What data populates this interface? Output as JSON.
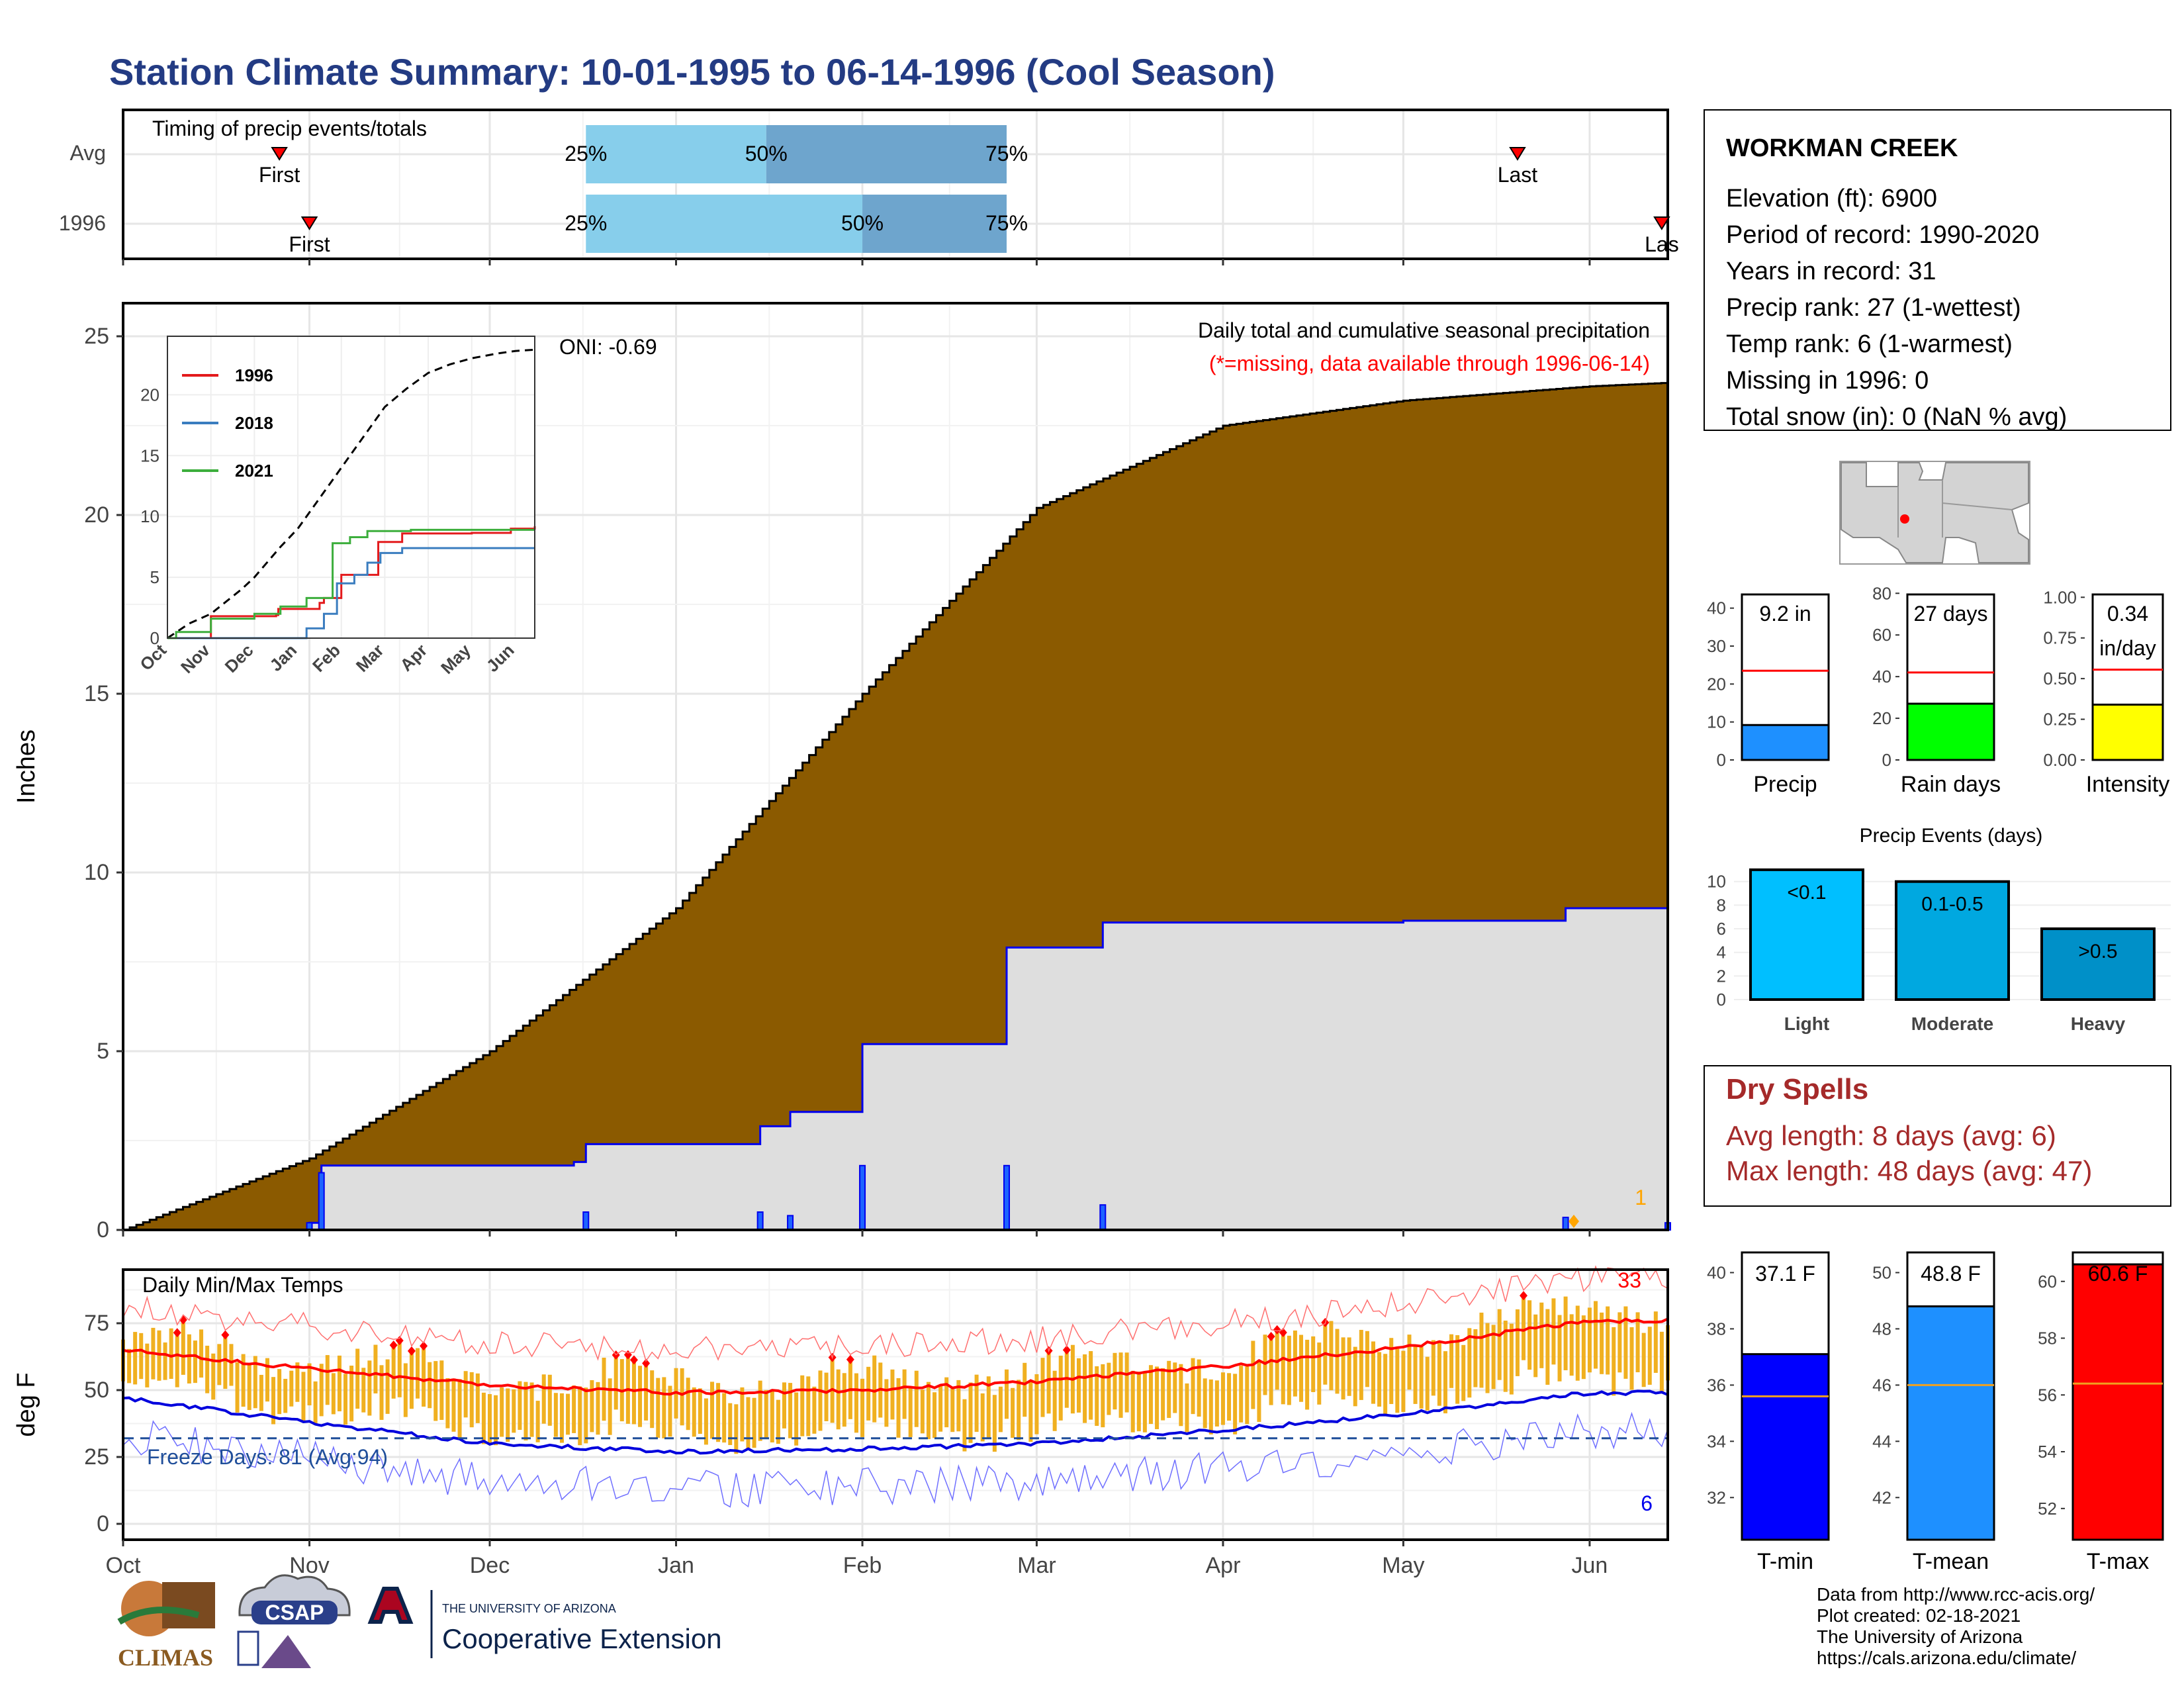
{
  "title": "Station Climate Summary: 10-01-1995 to 06-14-1996 (Cool Season)",
  "colors": {
    "title": "#233b83",
    "brown": "#8b5a00",
    "light_gray": "#dedede",
    "blue": "#0000ee",
    "tmax_line": "#ff0000",
    "tmin_line": "#0000dd",
    "bar_gold": "#f0b020",
    "freeze_line": "#1f4e9a",
    "dry_text": "#a52a2a",
    "q_light": "#87ceeb",
    "q_dark": "#6ea5cd"
  },
  "timing": {
    "label": "Timing of precip events/totals",
    "rows": [
      {
        "name": "Avg",
        "first": "First",
        "last": "Last",
        "q25": "25%",
        "q50": "50%",
        "q75": "75%",
        "first_date": "1995-10-27",
        "last_date": "1996-05-20",
        "q25_date": "1995-12-17",
        "q50_date": "1996-01-16",
        "q75_date": "1996-02-25"
      },
      {
        "name": "1996",
        "first": "First",
        "last": "Las",
        "q25": "25%",
        "q50": "50%",
        "q75": "75%",
        "first_date": "1995-11-01",
        "last_date": "1996-06-13",
        "q25_date": "1995-12-17",
        "q50_date": "1996-02-01",
        "q75_date": "1996-02-25"
      }
    ]
  },
  "months": [
    "Oct",
    "Nov",
    "Dec",
    "Jan",
    "Feb",
    "Mar",
    "Apr",
    "May",
    "Jun"
  ],
  "precip_panel": {
    "ylabel": "Inches",
    "yticks": [
      "0",
      "5",
      "10",
      "15",
      "20",
      "25"
    ],
    "note1": "Daily total and cumulative seasonal precipitation",
    "note2": "(*=missing, data available through 1996-06-14)",
    "oni": "ONI: -0.69",
    "count_label": "1"
  },
  "inset": {
    "yticks": [
      "0",
      "5",
      "10",
      "15",
      "20"
    ],
    "months": [
      "Oct",
      "Nov",
      "Dec",
      "Jan",
      "Feb",
      "Mar",
      "Apr",
      "May",
      "Jun"
    ],
    "legend": [
      {
        "label": "1996",
        "color": "#e31a1c"
      },
      {
        "label": "2018",
        "color": "#3a7dbf"
      },
      {
        "label": "2021",
        "color": "#3cae3c"
      }
    ]
  },
  "temp_panel": {
    "ylabel": "deg F",
    "label": "Daily Min/Max Temps",
    "yticks": [
      "0",
      "25",
      "50",
      "75"
    ],
    "freeze_label": "Freeze Days: 81 (Avg:94)",
    "count_low": "6",
    "count_high": "33"
  },
  "station": {
    "name": "WORKMAN CREEK",
    "lines": [
      "Elevation (ft): 6900",
      "Period of record: 1990-2020",
      "Years in record: 31",
      "Precip rank: 27 (1-wettest)",
      "Temp rank: 6 (1-warmest)",
      "Missing in 1996: 0",
      "Total snow (in): 0 (NaN % avg)"
    ]
  },
  "small_bars": [
    {
      "name": "Precip",
      "value_label": "9.2 in",
      "value": 9.2,
      "avg": 23.5,
      "ymax": 45,
      "ticks": [
        "0",
        "10",
        "20",
        "30",
        "40"
      ],
      "tickvals": [
        0,
        10,
        20,
        30,
        40
      ],
      "color": "#1e90ff"
    },
    {
      "name": "Rain days",
      "value_label": "27 days",
      "value": 27,
      "avg": 42,
      "ymax": 82,
      "ticks": [
        "0",
        "20",
        "40",
        "60",
        "80"
      ],
      "tickvals": [
        0,
        20,
        40,
        60,
        80
      ],
      "color": "#00ff00"
    },
    {
      "name": "Intensity",
      "value_label": "0.34",
      "value_label2": "in/day",
      "value": 0.34,
      "avg": 0.555,
      "ymax": 1.05,
      "ticks": [
        "0.00",
        "0.25",
        "0.50",
        "0.75",
        "1.00"
      ],
      "tickvals": [
        0,
        0.25,
        0.5,
        0.75,
        1.0
      ],
      "color": "#ffff00"
    }
  ],
  "precip_events": {
    "title": "Precip Events (days)",
    "ticks": [
      "0",
      "2",
      "4",
      "6",
      "8",
      "10"
    ],
    "bars": [
      {
        "name": "Light",
        "label": "<0.1",
        "value": 11,
        "color": "#00bfff"
      },
      {
        "name": "Moderate",
        "label": "0.1-0.5",
        "value": 10,
        "color": "#00a8e0"
      },
      {
        "name": "Heavy",
        "label": ">0.5",
        "value": 6,
        "color": "#0090c8"
      }
    ]
  },
  "dry_spells": {
    "title": "Dry Spells",
    "avg": "Avg length: 8 days (avg: 6)",
    "max": "Max length: 48 days (avg: 47)"
  },
  "temp_bars": [
    {
      "name": "T-min",
      "value_label": "37.1 F",
      "value": 37.1,
      "avg": 35.6,
      "ymin": 30.5,
      "ymax": 41,
      "ticks": [
        "32",
        "34",
        "36",
        "38",
        "40"
      ],
      "tickvals": [
        32,
        34,
        36,
        38,
        40
      ],
      "color": "#0000ff"
    },
    {
      "name": "T-mean",
      "value_label": "48.8 F",
      "value": 48.8,
      "avg": 46.0,
      "ymin": 40.5,
      "ymax": 51,
      "ticks": [
        "42",
        "44",
        "46",
        "48",
        "50"
      ],
      "tickvals": [
        42,
        44,
        46,
        48,
        50
      ],
      "color": "#1e90ff"
    },
    {
      "name": "T-max",
      "value_label": "60.6 F",
      "value": 60.6,
      "avg": 56.4,
      "ymin": 50.9,
      "ymax": 61.3,
      "ticks": [
        "52",
        "54",
        "56",
        "58",
        "60"
      ],
      "tickvals": [
        52,
        54,
        56,
        58,
        60
      ],
      "color": "#ff0000"
    }
  ],
  "credits": [
    "Data from http://www.rcc-acis.org/",
    "Plot created: 02-18-2021",
    "The University of Arizona",
    "https://cals.arizona.edu/climate/"
  ],
  "logos": {
    "climas": "CLIMAS",
    "csap": "CSAP",
    "ua_small": "THE UNIVERSITY OF ARIZONA",
    "ua_large": "Cooperative Extension"
  },
  "chart_data": [
    {
      "type": "area",
      "title": "Daily total and cumulative seasonal precipitation",
      "ylabel": "Inches",
      "ylim": [
        0,
        26
      ],
      "series": [
        {
          "name": "Average cumulative",
          "x": [
            "1995-10-01",
            "1995-11-01",
            "1995-12-01",
            "1996-01-01",
            "1996-02-01",
            "1996-03-01",
            "1996-04-01",
            "1996-05-01",
            "1996-06-01",
            "1996-06-14"
          ],
          "values": [
            0,
            2.0,
            5.0,
            9.0,
            15.0,
            20.2,
            22.5,
            23.2,
            23.6,
            23.7
          ]
        },
        {
          "name": "1996 cumulative",
          "x": [
            "1995-10-01",
            "1995-11-01",
            "1995-11-03",
            "1995-12-15",
            "1995-12-17",
            "1996-01-15",
            "1996-01-20",
            "1996-02-01",
            "1996-02-24",
            "1996-02-25",
            "1996-03-12",
            "1996-05-01",
            "1996-05-28",
            "1996-06-14"
          ],
          "values": [
            0,
            0.2,
            1.8,
            1.9,
            2.4,
            2.9,
            3.3,
            5.2,
            5.2,
            7.9,
            8.6,
            8.65,
            9.0,
            9.2
          ]
        }
      ]
    },
    {
      "type": "line",
      "title": "Daily Min/Max Temps",
      "ylabel": "deg F",
      "ylim": [
        -5,
        93
      ],
      "series": [
        {
          "name": "Avg Tmax",
          "x": [
            "Oct",
            "Nov",
            "Dec",
            "Jan",
            "Feb",
            "Mar",
            "Apr",
            "May",
            "Jun"
          ],
          "values": [
            65,
            58,
            52,
            49,
            50,
            53,
            59,
            66,
            76
          ]
        },
        {
          "name": "Avg Tmin",
          "x": [
            "Oct",
            "Nov",
            "Dec",
            "Jan",
            "Feb",
            "Mar",
            "Apr",
            "May",
            "Jun"
          ],
          "values": [
            47,
            38,
            30,
            27,
            28,
            30,
            35,
            41,
            49
          ]
        },
        {
          "name": "Freeze",
          "x": [
            "Oct",
            "Jun"
          ],
          "values": [
            32,
            32
          ]
        }
      ]
    }
  ]
}
